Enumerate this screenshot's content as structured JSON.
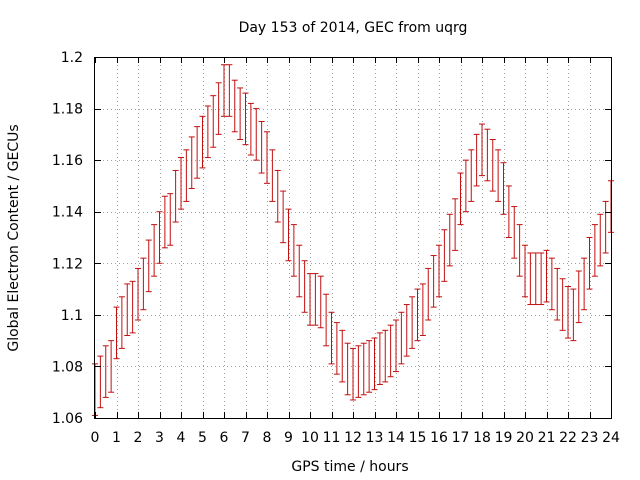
{
  "chart_data": {
    "type": "scatter",
    "title": "Day 153 of 2014, GEC from uqrg",
    "xlabel": "GPS time / hours",
    "ylabel": "Global Electron Content / GECUs",
    "xlim": [
      0,
      24
    ],
    "ylim": [
      1.06,
      1.2
    ],
    "xticks": [
      "0",
      "1",
      "2",
      "3",
      "4",
      "5",
      "6",
      "7",
      "8",
      "9",
      "10",
      "11",
      "12",
      "13",
      "14",
      "15",
      "16",
      "17",
      "18",
      "19",
      "20",
      "21",
      "22",
      "23",
      "24"
    ],
    "yticks": [
      "1.06",
      "1.08",
      "1.1",
      "1.12",
      "1.14",
      "1.16",
      "1.18",
      "1.2"
    ],
    "grid": true,
    "error_bar_color": "#c01010",
    "series": [
      {
        "x": [
          0.0,
          0.25,
          0.5,
          0.75,
          1.0,
          1.25,
          1.5,
          1.75,
          2.0,
          2.25,
          2.5,
          2.75,
          3.0,
          3.25,
          3.5,
          3.75,
          4.0,
          4.25,
          4.5,
          4.75,
          5.0,
          5.25,
          5.5,
          5.75,
          6.0,
          6.25,
          6.5,
          6.75,
          7.0,
          7.25,
          7.5,
          7.75,
          8.0,
          8.25,
          8.5,
          8.75,
          9.0,
          9.25,
          9.5,
          9.75,
          10.0,
          10.25,
          10.5,
          10.75,
          11.0,
          11.25,
          11.5,
          11.75,
          12.0,
          12.25,
          12.5,
          12.75,
          13.0,
          13.25,
          13.5,
          13.75,
          14.0,
          14.25,
          14.5,
          14.75,
          15.0,
          15.25,
          15.5,
          15.75,
          16.0,
          16.25,
          16.5,
          16.75,
          17.0,
          17.25,
          17.5,
          17.75,
          18.0,
          18.25,
          18.5,
          18.75,
          19.0,
          19.25,
          19.5,
          19.75,
          20.0,
          20.25,
          20.5,
          20.75,
          21.0,
          21.25,
          21.5,
          21.75,
          22.0,
          22.25,
          22.5,
          22.75,
          23.0,
          23.25,
          23.5,
          23.75,
          24.0
        ],
        "y": [
          1.071,
          1.074,
          1.078,
          1.08,
          1.093,
          1.097,
          1.102,
          1.103,
          1.108,
          1.112,
          1.119,
          1.125,
          1.13,
          1.136,
          1.137,
          1.146,
          1.151,
          1.154,
          1.159,
          1.163,
          1.167,
          1.171,
          1.175,
          1.18,
          1.187,
          1.187,
          1.181,
          1.178,
          1.176,
          1.172,
          1.17,
          1.165,
          1.161,
          1.154,
          1.146,
          1.138,
          1.131,
          1.125,
          1.117,
          1.111,
          1.106,
          1.106,
          1.105,
          1.098,
          1.091,
          1.087,
          1.084,
          1.079,
          1.077,
          1.078,
          1.079,
          1.08,
          1.081,
          1.083,
          1.084,
          1.086,
          1.088,
          1.091,
          1.094,
          1.097,
          1.1,
          1.102,
          1.108,
          1.113,
          1.117,
          1.123,
          1.129,
          1.135,
          1.145,
          1.15,
          1.154,
          1.16,
          1.164,
          1.162,
          1.158,
          1.154,
          1.149,
          1.14,
          1.132,
          1.125,
          1.117,
          1.114,
          1.114,
          1.114,
          1.115,
          1.112,
          1.108,
          1.104,
          1.101,
          1.1,
          1.107,
          1.112,
          1.12,
          1.125,
          1.129,
          1.134,
          1.142
        ],
        "err": [
          0.01,
          0.01,
          0.01,
          0.01,
          0.01,
          0.01,
          0.01,
          0.01,
          0.01,
          0.01,
          0.01,
          0.01,
          0.01,
          0.01,
          0.01,
          0.01,
          0.01,
          0.01,
          0.01,
          0.01,
          0.01,
          0.01,
          0.01,
          0.01,
          0.01,
          0.01,
          0.01,
          0.01,
          0.01,
          0.01,
          0.01,
          0.01,
          0.01,
          0.01,
          0.01,
          0.01,
          0.01,
          0.01,
          0.01,
          0.01,
          0.01,
          0.01,
          0.01,
          0.01,
          0.01,
          0.01,
          0.01,
          0.01,
          0.01,
          0.01,
          0.01,
          0.01,
          0.01,
          0.01,
          0.01,
          0.01,
          0.01,
          0.01,
          0.01,
          0.01,
          0.01,
          0.01,
          0.01,
          0.01,
          0.01,
          0.01,
          0.01,
          0.01,
          0.01,
          0.01,
          0.01,
          0.01,
          0.01,
          0.01,
          0.01,
          0.01,
          0.01,
          0.01,
          0.01,
          0.01,
          0.01,
          0.01,
          0.01,
          0.01,
          0.01,
          0.01,
          0.01,
          0.01,
          0.01,
          0.01,
          0.01,
          0.01,
          0.01,
          0.01,
          0.01,
          0.01,
          0.01
        ]
      }
    ]
  }
}
